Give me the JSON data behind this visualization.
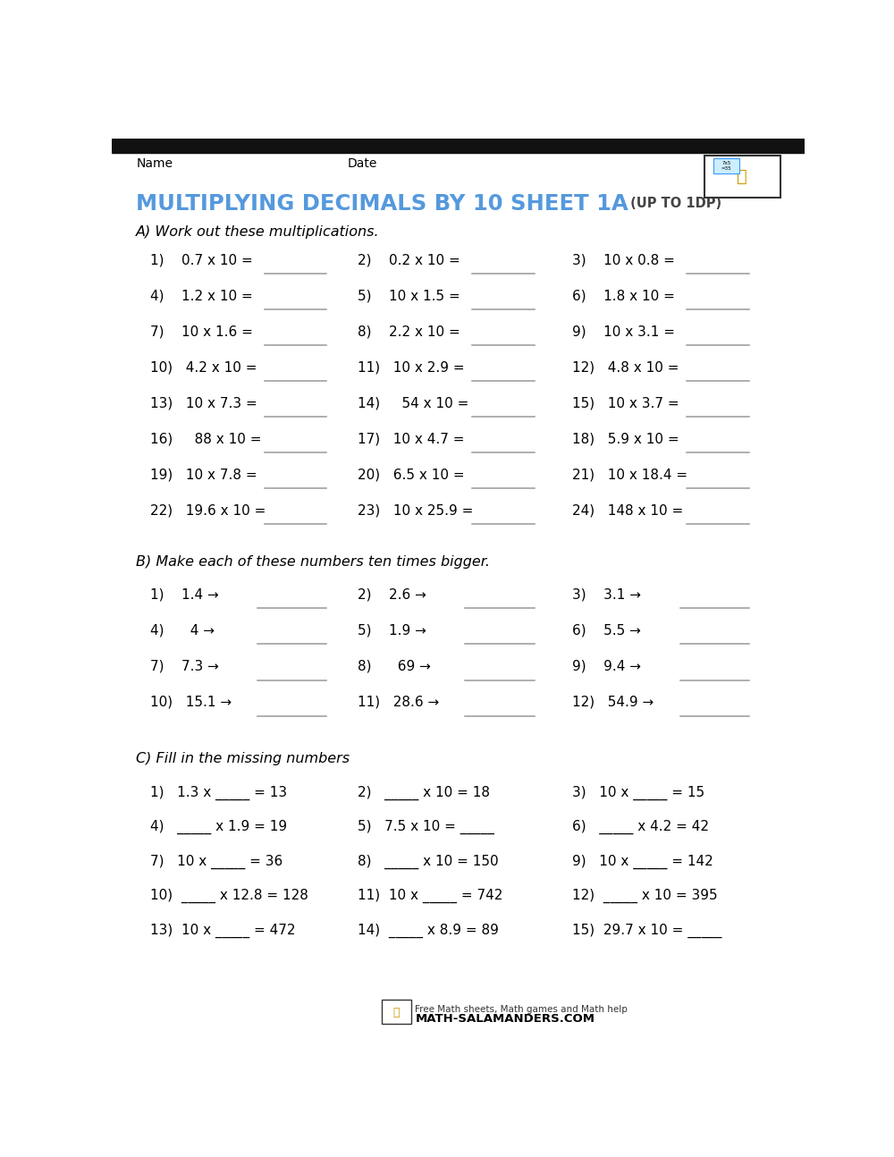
{
  "title_main": "MULTIPLYING DECIMALS BY 10 SHEET 1A",
  "title_sub": " (UP TO 1DP)",
  "title_color": "#5599dd",
  "bg_color": "#ffffff",
  "header_bar_color": "#111111",
  "name_label": "Name",
  "date_label": "Date",
  "section_a_header": "A) Work out these multiplications.",
  "section_b_header": "B) Make each of these numbers ten times bigger.",
  "section_c_header": "C) Fill in the missing numbers",
  "section_a_col1": [
    "1)    0.7 x 10 =",
    "4)    1.2 x 10 =",
    "7)    10 x 1.6 =",
    "10)   4.2 x 10 =",
    "13)   10 x 7.3 =",
    "16)     88 x 10 =",
    "19)   10 x 7.8 =",
    "22)   19.6 x 10 ="
  ],
  "section_a_col2": [
    "2)    0.2 x 10 =",
    "5)    10 x 1.5 =",
    "8)    2.2 x 10 =",
    "11)   10 x 2.9 =",
    "14)     54 x 10 =",
    "17)   10 x 4.7 =",
    "20)   6.5 x 10 =",
    "23)   10 x 25.9 ="
  ],
  "section_a_col3": [
    "3)    10 x 0.8 =",
    "6)    1.8 x 10 =",
    "9)    10 x 3.1 =",
    "12)   4.8 x 10 =",
    "15)   10 x 3.7 =",
    "18)   5.9 x 10 =",
    "21)   10 x 18.4 =",
    "24)   148 x 10 ="
  ],
  "section_b_col1": [
    "1)    1.4 →",
    "4)      4 →",
    "7)    7.3 →",
    "10)   15.1 →"
  ],
  "section_b_col2": [
    "2)    2.6 →",
    "5)    1.9 →",
    "8)      69 →",
    "11)   28.6 →"
  ],
  "section_b_col3": [
    "3)    3.1 →",
    "6)    5.5 →",
    "9)    9.4 →",
    "12)   54.9 →"
  ],
  "section_c_col1": [
    "1)   1.3 x _____ = 13",
    "4)   _____ x 1.9 = 19",
    "7)   10 x _____ = 36",
    "10)  _____ x 12.8 = 128",
    "13)  10 x _____ = 472"
  ],
  "section_c_col2": [
    "2)   _____ x 10 = 18",
    "5)   7.5 x 10 = _____",
    "8)   _____ x 10 = 150",
    "11)  10 x _____ = 742",
    "14)  _____ x 8.9 = 89"
  ],
  "section_c_col3": [
    "3)   10 x _____ = 15",
    "6)   _____ x 4.2 = 42",
    "9)   10 x _____ = 142",
    "12)  _____ x 10 = 395",
    "15)  29.7 x 10 = _____"
  ],
  "footer_text": "Free Math sheets, Math games and Math help",
  "footer_url": "MATH-SALAMANDERS.COM"
}
